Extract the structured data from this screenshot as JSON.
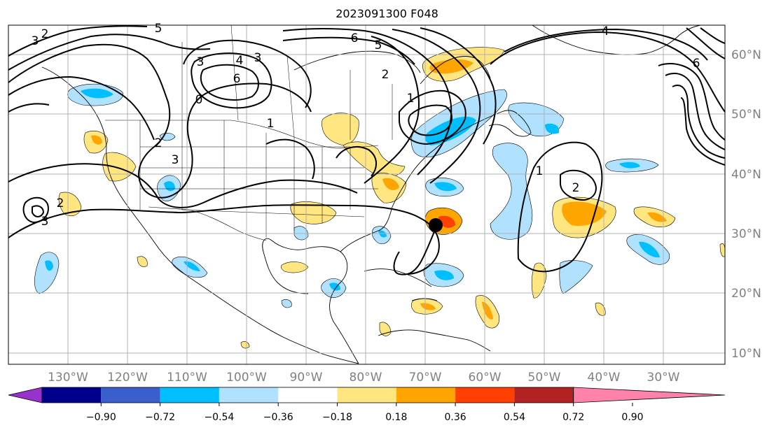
{
  "title": "2023091300 F048",
  "map": {
    "lon_labels": [
      "130°W",
      "120°W",
      "110°W",
      "100°W",
      "90°W",
      "80°W",
      "70°W",
      "60°W",
      "50°W",
      "40°W",
      "30°W"
    ],
    "lat_labels": [
      "60°N",
      "50°N",
      "40°N",
      "30°N",
      "20°N",
      "10°N"
    ],
    "contour_labels": [
      "5",
      "3",
      "4",
      "6",
      "0",
      "2",
      "1",
      "2",
      "3",
      "3",
      "1",
      "2",
      "6",
      "5",
      "3",
      "3",
      "2",
      "4",
      "6",
      "1",
      "2"
    ],
    "marker": "storm-center"
  },
  "colorbar": {
    "ticks": [
      "−0.90",
      "−0.72",
      "−0.54",
      "−0.36",
      "−0.18",
      "0.18",
      "0.36",
      "0.54",
      "0.72",
      "0.90"
    ],
    "colors": [
      "#9932cc",
      "#00008b",
      "#3a5fcd",
      "#00bfff",
      "#b0e2ff",
      "#ffffff",
      "#ffe680",
      "#ffa500",
      "#ff4000",
      "#b22222",
      "#ff82ab"
    ]
  }
}
